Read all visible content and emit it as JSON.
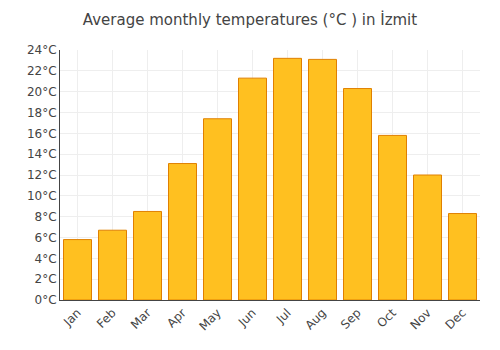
{
  "chart_data": {
    "type": "bar",
    "title": "Average monthly temperatures (°C ) in İzmit",
    "categories": [
      "Jan",
      "Feb",
      "Mar",
      "Apr",
      "May",
      "Jun",
      "Jul",
      "Aug",
      "Sep",
      "Oct",
      "Nov",
      "Dec"
    ],
    "values": [
      5.8,
      6.7,
      8.5,
      13.1,
      17.4,
      21.3,
      23.2,
      23.1,
      20.3,
      15.8,
      12.0,
      8.3
    ],
    "color": "#FFC020",
    "ylim": [
      0,
      24
    ],
    "yticks": [
      {
        "value": 0,
        "label": "0°C"
      },
      {
        "value": 2,
        "label": "2°C"
      },
      {
        "value": 4,
        "label": "4°C"
      },
      {
        "value": 6,
        "label": "6°C"
      },
      {
        "value": 8,
        "label": "8°C"
      },
      {
        "value": 10,
        "label": "10°C"
      },
      {
        "value": 12,
        "label": "12°C"
      },
      {
        "value": 14,
        "label": "14°C"
      },
      {
        "value": 16,
        "label": "16°C"
      },
      {
        "value": 18,
        "label": "18°C"
      },
      {
        "value": 20,
        "label": "20°C"
      },
      {
        "value": 22,
        "label": "22°C"
      },
      {
        "value": 24,
        "label": "24°C"
      }
    ],
    "grid": true
  }
}
